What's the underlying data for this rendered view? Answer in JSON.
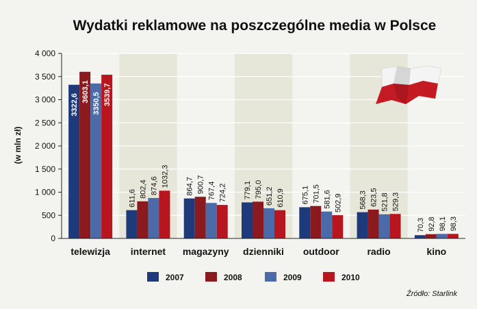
{
  "chart_data": {
    "type": "bar",
    "title": "Wydatki reklamowe na poszczególne media w Polsce",
    "ylabel": "(w mln zł)",
    "xlabel": "",
    "ylim": [
      0,
      4000
    ],
    "yticks": [
      0,
      500,
      1000,
      1500,
      2000,
      2500,
      3000,
      3500,
      4000
    ],
    "ytick_labels": [
      "0",
      "500",
      "1 000",
      "1 500",
      "2 000",
      "2 500",
      "3 000",
      "3 500",
      "4 000"
    ],
    "categories": [
      "telewizja",
      "internet",
      "magazyny",
      "dzienniki",
      "outdoor",
      "radio",
      "kino"
    ],
    "series": [
      {
        "name": "2007",
        "color": "#1f3a7a",
        "values": [
          3322.6,
          611.6,
          864.7,
          779.1,
          675.1,
          568.3,
          70.3
        ],
        "labels": [
          "3322,6",
          "611,6",
          "864,7",
          "779,1",
          "675,1",
          "568,3",
          "70,3"
        ]
      },
      {
        "name": "2008",
        "color": "#8b1a1f",
        "values": [
          3603.1,
          802.4,
          900.7,
          795.0,
          701.5,
          623.5,
          92.8
        ],
        "labels": [
          "3603,1",
          "802,4",
          "900,7",
          "795,0",
          "701,5",
          "623,5",
          "92,8"
        ]
      },
      {
        "name": "2009",
        "color": "#4a6aa8",
        "values": [
          3350.5,
          874.6,
          767.4,
          651.2,
          581.6,
          521.8,
          98.1
        ],
        "labels": [
          "3350,5",
          "874,6",
          "767,4",
          "651,2",
          "581,6",
          "521,8",
          "98,1"
        ]
      },
      {
        "name": "2010",
        "color": "#b8161e",
        "values": [
          3539.7,
          1032.3,
          724.2,
          610.9,
          502.9,
          529.3,
          98.3
        ],
        "labels": [
          "3539,7",
          "1032,3",
          "724,2",
          "610,9",
          "502,9",
          "529,3",
          "98,3"
        ]
      }
    ],
    "legend_position": "bottom",
    "grid": true,
    "source": "Źródło: Starlink"
  },
  "colors": {
    "background": "#f3f3ef",
    "band": "#e6e6d9",
    "grid": "#ffffff",
    "flag_white": "#f4f4f4",
    "flag_red": "#c41a24"
  }
}
